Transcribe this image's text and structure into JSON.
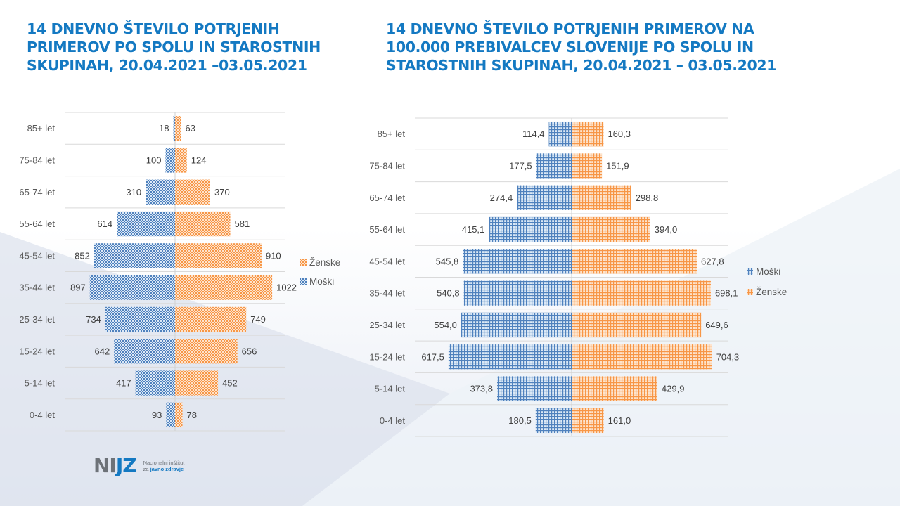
{
  "colors": {
    "title": "#1479c2",
    "male": "#4f81bd",
    "female": "#f79646",
    "grid": "#d9d9d9",
    "background_tint": "#e4e9f3"
  },
  "logo": {
    "mark_ni": "NI",
    "mark_jz": "JZ",
    "tagline_line1": "Nacionalni inštitut",
    "tagline_za": "za ",
    "tagline_bold": "javno zdravje"
  },
  "chart_data": [
    {
      "type": "bar",
      "orientation": "horizontal-diverging",
      "title": "14 DNEVNO ŠTEVILO POTRJENIH\nPRIMEROV PO SPOLU IN STAROSTNIH\nSKUPINAH, 20.04.2021 –03.05.2021",
      "categories": [
        "85+ let",
        "75-84 let",
        "65-74 let",
        "55-64 let",
        "45-54 let",
        "35-44 let",
        "25-34 let",
        "15-24 let",
        "5-14 let",
        "0-4 let"
      ],
      "series": [
        {
          "name": "Ženske",
          "side": "right",
          "pattern": "dots",
          "values": [
            63,
            124,
            370,
            581,
            910,
            1022,
            749,
            656,
            452,
            78
          ],
          "labels": [
            "63",
            "124",
            "370",
            "581",
            "910",
            "1022",
            "749",
            "656",
            "452",
            "78"
          ]
        },
        {
          "name": "Moški",
          "side": "left",
          "pattern": "dots",
          "values": [
            18,
            100,
            310,
            614,
            852,
            897,
            734,
            642,
            417,
            93
          ],
          "labels": [
            "18",
            "100",
            "310",
            "614",
            "852",
            "897",
            "734",
            "642",
            "417",
            "93"
          ]
        }
      ],
      "legend": [
        {
          "name": "Ženske",
          "series": 0
        },
        {
          "name": "Moški",
          "series": 1
        }
      ],
      "legend_position": "right",
      "grid": true,
      "xlim": [
        -1100,
        1100
      ]
    },
    {
      "type": "bar",
      "orientation": "horizontal-diverging",
      "title": "14 DNEVNO ŠTEVILO POTRJENIH PRIMEROV NA\n100.000 PREBIVALCEV SLOVENIJE PO SPOLU IN\nSTAROSTNIH SKUPINAH, 20.04.2021 – 03.05.2021",
      "categories": [
        "85+ let",
        "75-84 let",
        "65-74 let",
        "55-64 let",
        "45-54 let",
        "35-44 let",
        "25-34 let",
        "15-24 let",
        "5-14 let",
        "0-4 let"
      ],
      "series": [
        {
          "name": "Moški",
          "side": "left",
          "pattern": "grid",
          "values": [
            114.4,
            177.5,
            274.4,
            415.1,
            545.8,
            540.8,
            554.0,
            617.5,
            373.8,
            180.5
          ],
          "labels": [
            "114,4",
            "177,5",
            "274,4",
            "415,1",
            "545,8",
            "540,8",
            "554,0",
            "617,5",
            "373,8",
            "180,5"
          ]
        },
        {
          "name": "Ženske",
          "side": "right",
          "pattern": "grid",
          "values": [
            160.3,
            151.9,
            298.8,
            394.0,
            627.8,
            698.1,
            649.6,
            704.3,
            429.9,
            161.0
          ],
          "labels": [
            "160,3",
            "151,9",
            "298,8",
            "394,0",
            "627,8",
            "698,1",
            "649,6",
            "704,3",
            "429,9",
            "161,0"
          ]
        }
      ],
      "legend": [
        {
          "name": "Moški",
          "series": 0
        },
        {
          "name": "Ženske",
          "series": 1
        }
      ],
      "legend_position": "right",
      "grid": true,
      "xlim": [
        -800,
        800
      ]
    }
  ]
}
